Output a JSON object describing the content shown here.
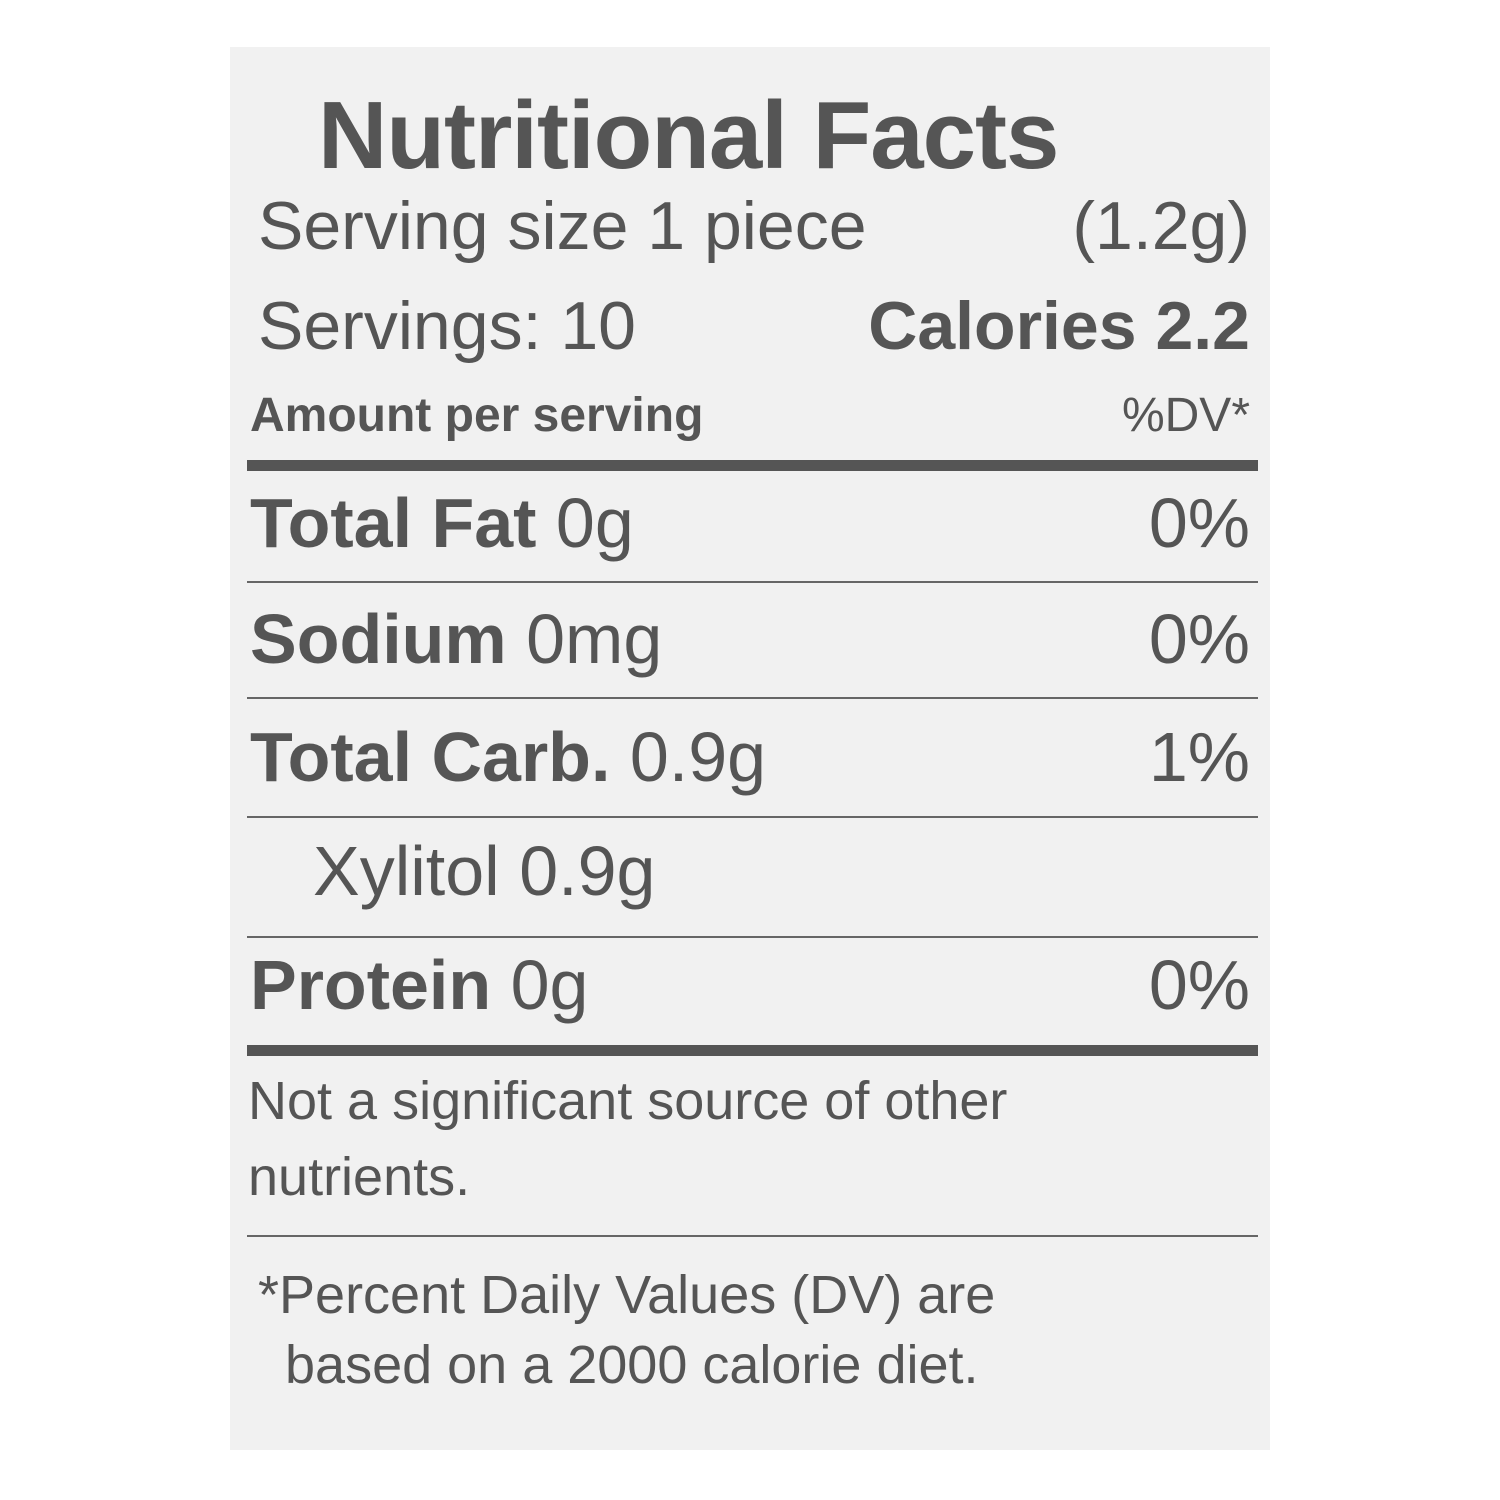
{
  "title": "Nutritional Facts",
  "serving_size": {
    "label": "Serving size 1 piece",
    "value": "(1.2g)"
  },
  "servings": "Servings: 10",
  "calories": "Calories 2.2",
  "header": {
    "amount_label": "Amount per serving",
    "dv_label": "%DV*"
  },
  "nutrients": [
    {
      "name": "Total Fat",
      "amount": "0g",
      "dv": "0%"
    },
    {
      "name": "Sodium",
      "amount": "0mg",
      "dv": "0%"
    },
    {
      "name": "Total Carb.",
      "amount": "0.9g",
      "dv": "1%"
    },
    {
      "name": "Xylitol",
      "amount": "0.9g",
      "dv": ""
    },
    {
      "name": "Protein",
      "amount": "0g",
      "dv": "0%"
    }
  ],
  "note": [
    "Not a significant source of other",
    "nutrients."
  ],
  "footnote": [
    "*Percent Daily Values (DV) are",
    "based on a 2000 calorie diet."
  ],
  "colors": {
    "text": "#555555",
    "panel": "#f1f1f1"
  }
}
